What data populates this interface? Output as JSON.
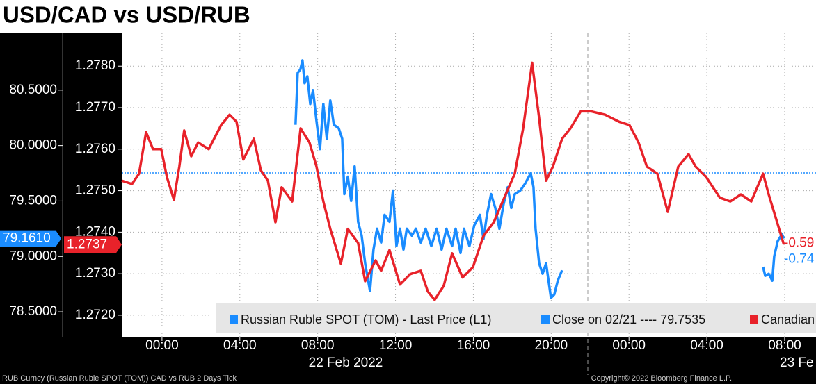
{
  "chart_data": {
    "type": "line",
    "title": "USD/CAD vs USD/RUB",
    "xlim": [
      -2.07,
      33.61
    ],
    "xticks": [
      {
        "value": 0,
        "label": "00:00"
      },
      {
        "value": 4,
        "label": "04:00"
      },
      {
        "value": 8,
        "label": "08:00"
      },
      {
        "value": 12,
        "label": "12:00"
      },
      {
        "value": 16,
        "label": "16:00"
      },
      {
        "value": 20,
        "label": "20:00"
      },
      {
        "value": 24,
        "label": "00:00"
      },
      {
        "value": 28,
        "label": "04:00"
      },
      {
        "value": 32,
        "label": "08:00"
      }
    ],
    "x_date_labels": [
      "22 Feb 2022",
      "23 Fe"
    ],
    "ylim": [
      78.275,
      81.0125
    ],
    "yticks": [
      {
        "value": 78.5,
        "label": "78.5000"
      },
      {
        "value": 79,
        "label": "79.0000"
      },
      {
        "value": 79.5,
        "label": "79.5000"
      },
      {
        "value": 80,
        "label": "80.0000"
      },
      {
        "value": 80.5,
        "label": "80.5000"
      }
    ],
    "y2lim": [
      1.27148,
      1.27879
    ],
    "y2ticks": [
      {
        "value": 1.272,
        "label": "1.2720"
      },
      {
        "value": 1.273,
        "label": "1.2730"
      },
      {
        "value": 1.274,
        "label": "1.2740"
      },
      {
        "value": 1.275,
        "label": "1.2750"
      },
      {
        "value": 1.276,
        "label": "1.2760"
      },
      {
        "value": 1.277,
        "label": "1.2770"
      },
      {
        "value": 1.278,
        "label": "1.2780"
      }
    ],
    "grid": true,
    "reference_line": {
      "value": 79.7535,
      "label": "Close on 02/21 ---- 79.7535",
      "color": "#1a8cff"
    },
    "series": [
      {
        "name": "Russian Ruble SPOT (TOM) - Last Price (L1)",
        "color": "#1a8cff",
        "last_label": "79.1610",
        "change_label": "-0.74",
        "x": [
          6.86,
          6.97,
          7.11,
          7.22,
          7.33,
          7.47,
          7.62,
          7.76,
          7.94,
          8.12,
          8.29,
          8.47,
          8.65,
          8.83,
          9.08,
          9.26,
          9.37,
          9.55,
          9.72,
          9.9,
          10.08,
          10.26,
          10.44,
          10.69,
          10.87,
          11.05,
          11.26,
          11.44,
          11.69,
          11.87,
          12.05,
          12.23,
          12.41,
          12.58,
          12.84,
          13.05,
          13.3,
          13.55,
          13.84,
          14.12,
          14.37,
          14.62,
          14.91,
          15.09,
          15.34,
          15.52,
          15.8,
          16.05,
          16.34,
          16.52,
          16.7,
          16.91,
          17.13,
          17.34,
          17.55,
          17.77,
          17.95,
          18.13,
          18.41,
          18.66,
          18.95,
          19.09,
          19.2,
          19.38,
          19.56,
          19.74,
          19.99,
          20.16,
          20.34,
          20.56,
          25,
          30.89,
          31.0,
          31.18,
          31.36,
          31.46,
          31.64,
          31.86,
          31.96
        ],
        "values": [
          80.1875,
          80.6563,
          80.6875,
          80.7688,
          80.5625,
          80.625,
          80.375,
          80.5,
          80.2188,
          79.9688,
          80.375,
          80.0625,
          80.4063,
          80.1875,
          80.1563,
          80.0625,
          79.5625,
          79.7188,
          79.5,
          79.8125,
          79.3125,
          79.1875,
          78.9375,
          78.6875,
          79.0625,
          79.25,
          79.125,
          79.375,
          79.3125,
          79.5938,
          79.0938,
          79.25,
          79.0625,
          79.25,
          79.1875,
          79.25,
          79.125,
          79.25,
          79.0938,
          79.25,
          79.0625,
          79.25,
          79.0938,
          79.25,
          79.0313,
          79.25,
          79.0938,
          79.2813,
          79.375,
          79.1563,
          79.375,
          79.5625,
          79.4375,
          79.25,
          79.4688,
          79.625,
          79.4375,
          79.5625,
          79.5938,
          79.6563,
          79.75,
          79.625,
          79.25,
          78.9375,
          78.8438,
          78.9375,
          78.625,
          78.6563,
          78.7813,
          78.875,
          null,
          78.9063,
          78.825,
          78.8438,
          78.7813,
          79.0,
          79.1375,
          79.2,
          79.161
        ]
      },
      {
        "name": "Canadian",
        "color": "#e8222a",
        "axis": "y2",
        "last_label": "1.2737",
        "change_label": "-0.59",
        "x": [
          -2.07,
          -1.54,
          -1.18,
          -0.82,
          -0.46,
          -0.04,
          0.25,
          0.61,
          0.89,
          1.14,
          1.5,
          1.86,
          2.4,
          3.04,
          3.47,
          3.83,
          4.18,
          4.72,
          5.08,
          5.44,
          5.83,
          6.15,
          6.69,
          7.12,
          7.58,
          7.94,
          8.29,
          8.65,
          9.19,
          9.55,
          10.08,
          10.44,
          10.98,
          11.26,
          11.69,
          12.23,
          12.76,
          13.3,
          13.66,
          14.01,
          14.48,
          14.91,
          15.45,
          15.98,
          16.52,
          17.05,
          17.59,
          18.13,
          18.56,
          19.02,
          19.38,
          19.74,
          20.09,
          20.56,
          20.99,
          21.52,
          22.06,
          22.77,
          23.49,
          24.02,
          24.49,
          24.92,
          25.46,
          25.99,
          26.53,
          27.06,
          27.42,
          27.96,
          28.67,
          29.21,
          29.75,
          30.28,
          30.89,
          31.18,
          31.61,
          31.96
        ],
        "values": [
          1.27524,
          1.27516,
          1.27541,
          1.27641,
          1.276,
          1.276,
          1.27533,
          1.27478,
          1.27558,
          1.27645,
          1.27583,
          1.27616,
          1.276,
          1.27658,
          1.27683,
          1.27666,
          1.27575,
          1.27625,
          1.27549,
          1.27524,
          1.27424,
          1.27508,
          1.27474,
          1.2765,
          1.27616,
          1.27558,
          1.27474,
          1.27408,
          1.27324,
          1.27408,
          1.27374,
          1.27282,
          1.27332,
          1.27307,
          1.27357,
          1.27274,
          1.27299,
          1.27307,
          1.27257,
          1.27237,
          1.27271,
          1.27349,
          1.27291,
          1.27316,
          1.27391,
          1.27424,
          1.27483,
          1.27541,
          1.2765,
          1.27808,
          1.27675,
          1.27524,
          1.27558,
          1.27625,
          1.2765,
          1.27691,
          1.27691,
          1.27683,
          1.27666,
          1.27658,
          1.27616,
          1.27558,
          1.27541,
          1.27449,
          1.27558,
          1.27588,
          1.27558,
          1.27533,
          1.27483,
          1.27474,
          1.27491,
          1.27474,
          1.27541,
          1.27491,
          1.27424,
          1.2737
        ]
      }
    ],
    "footer_left": "RUB Curncy (Russian Ruble SPOT (TOM)) CAD vs RUB 2 Days  Tick",
    "footer_right": "Copyright© 2022 Bloomberg Finance L.P."
  }
}
